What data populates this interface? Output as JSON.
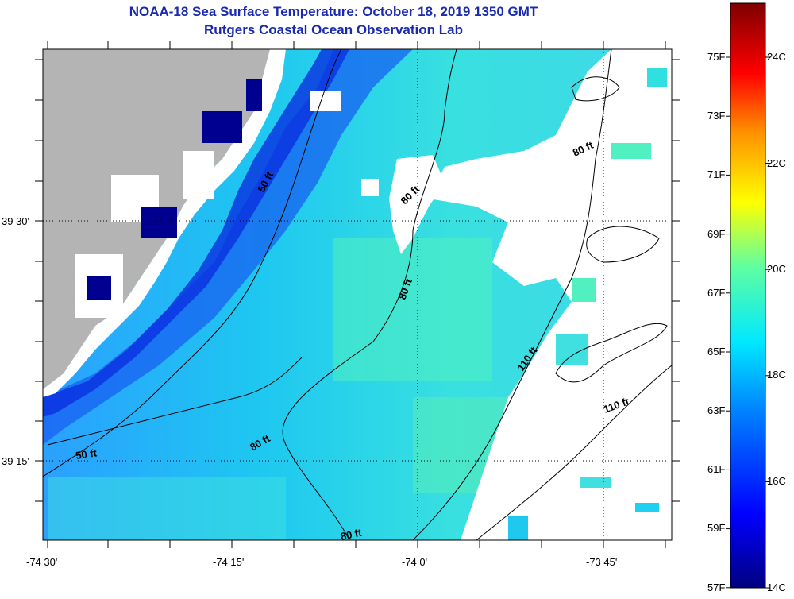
{
  "title": {
    "line1": "NOAA-18 Sea Surface Temperature:  October 18, 2019 1350 GMT",
    "line2": "Rutgers Coastal Ocean Observation Lab"
  },
  "lat_labels": [
    "39 30'",
    "39 15'"
  ],
  "lon_labels": [
    "-74 30'",
    "-74 15'",
    "-74 0'",
    "-73 45'"
  ],
  "contour_labels": [
    "50 ft",
    "50 ft",
    "80 ft",
    "80 ft",
    "80 ft",
    "80 ft",
    "80 ft",
    "110 ft",
    "110 ft"
  ],
  "colorbar": {
    "fahrenheit": [
      "75F",
      "73F",
      "71F",
      "69F",
      "67F",
      "65F",
      "63F",
      "61F",
      "59F",
      "57F"
    ],
    "celsius": [
      "24C",
      "22C",
      "20C",
      "18C",
      "16C",
      "14C"
    ],
    "colors": [
      "#7f0000",
      "#ff0000",
      "#ff8000",
      "#ffff00",
      "#80ff80",
      "#00ffff",
      "#0080ff",
      "#0000ff",
      "#00007f"
    ]
  },
  "colors": {
    "land": "#b4b4b4",
    "cloud": "#ffffff",
    "title": "#1a2ab0"
  }
}
